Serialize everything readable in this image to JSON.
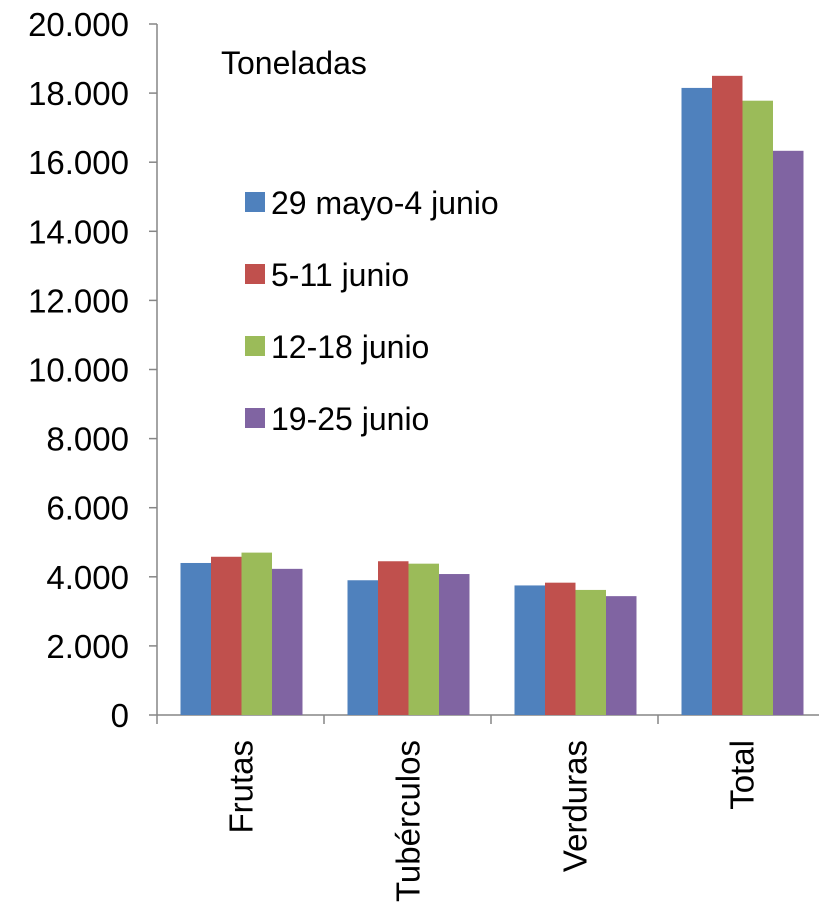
{
  "chart_data": {
    "type": "bar",
    "unit_label": "Toneladas",
    "categories": [
      "Frutas",
      "Tubérculos",
      "Verduras",
      "Total"
    ],
    "series": [
      {
        "name": "29 mayo-4 junio",
        "color": "#4f81bd",
        "values": [
          4400,
          3900,
          3750,
          18150
        ]
      },
      {
        "name": "5-11 junio",
        "color": "#c0504d",
        "values": [
          4580,
          4450,
          3830,
          18500
        ]
      },
      {
        "name": "12-18 junio",
        "color": "#9bbb59",
        "values": [
          4700,
          4380,
          3620,
          17780
        ]
      },
      {
        "name": "19-25 junio",
        "color": "#8064a2",
        "values": [
          4230,
          4080,
          3440,
          16330
        ]
      }
    ],
    "yticks": [
      "0",
      "2.000",
      "4.000",
      "6.000",
      "8.000",
      "10.000",
      "12.000",
      "14.000",
      "16.000",
      "18.000",
      "20.000"
    ],
    "ylim": [
      0,
      20000
    ],
    "grid": false,
    "legend_position": "upper-left inside"
  }
}
